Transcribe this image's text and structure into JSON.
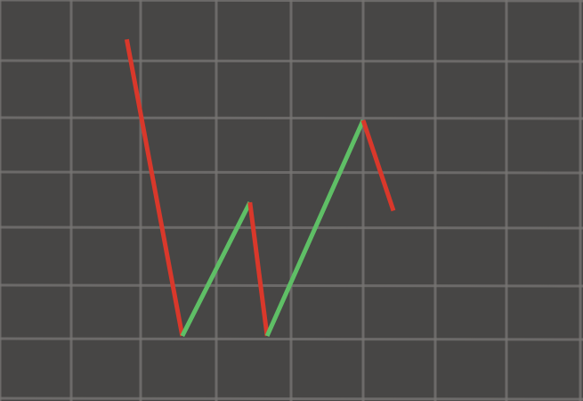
{
  "chart_data": {
    "type": "line",
    "title": "",
    "xlabel": "",
    "ylabel": "",
    "grid": true,
    "xlim": [
      0,
      8
    ],
    "ylim": [
      0,
      7
    ],
    "points": [
      {
        "x": 1.8,
        "y": 6.35
      },
      {
        "x": 2.55,
        "y": 1.05
      },
      {
        "x": 3.45,
        "y": 3.45
      },
      {
        "x": 3.68,
        "y": 1.05
      },
      {
        "x": 5.0,
        "y": 4.95
      },
      {
        "x": 5.42,
        "y": 3.3
      }
    ],
    "colors": {
      "up": "#5fbf66",
      "down": "#d9382b",
      "grid": "#767472",
      "background": "#474645"
    }
  }
}
